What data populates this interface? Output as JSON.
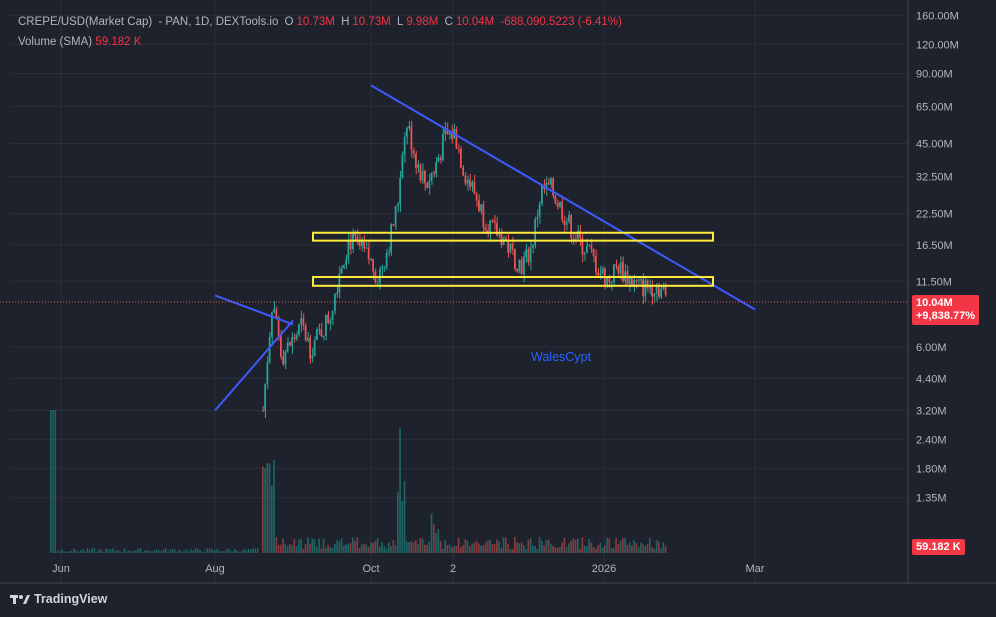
{
  "header": {
    "symbol": "CREPE/USD(Market Cap)",
    "source": " - PAN, 1D, DEXTools.io",
    "o_label": "O",
    "o_value": "10.73M",
    "h_label": "H",
    "h_value": "10.73M",
    "l_label": "L",
    "l_value": "9.98M",
    "c_label": "C",
    "c_value": "10.04M",
    "change": "-688,090.5223 (-6.41%)",
    "volume_label": "Volume (SMA)",
    "volume_value": "59.182 K"
  },
  "watermark": "WalesCypt",
  "brand": "TradingView",
  "price_tag": {
    "value": "10.04M",
    "change": "+9,838.77%"
  },
  "volume_tag": "59.182 K",
  "colors": {
    "up": "#26a69a",
    "down": "#ef5350",
    "trendline": "#3d5afe",
    "zone": "#ffeb3b",
    "background": "#1e222d"
  },
  "chart_data": {
    "type": "candlestick",
    "y_scale": "log",
    "y_ticks": [
      "160.00M",
      "120.00M",
      "90.00M",
      "65.00M",
      "45.00M",
      "32.50M",
      "22.50M",
      "16.50M",
      "11.50M",
      "6.00M",
      "4.40M",
      "3.20M",
      "2.40M",
      "1.80M",
      "1.35M"
    ],
    "x_ticks": [
      "Jun",
      "Aug",
      "Oct",
      "2",
      "2026",
      "Mar"
    ],
    "last_price": 10.04,
    "ohlc_path_millions": [
      3.2,
      9.8,
      5.5,
      6.3,
      7.4,
      5.9,
      7.0,
      8.2,
      13.0,
      17.5,
      16.0,
      14.5,
      12.0,
      16.0,
      24.0,
      55.0,
      38.0,
      30.0,
      36.0,
      48.0,
      50.0,
      34.0,
      28.0,
      22.0,
      19.0,
      18.0,
      15.0,
      13.5,
      16.0,
      28.0,
      29.0,
      24.0,
      20.0,
      17.0,
      15.5,
      13.0,
      11.5,
      13.5,
      12.0,
      11.0,
      10.8,
      11.2,
      10.04
    ],
    "annotations": [
      {
        "type": "trendline",
        "from": [
          "Oct",
          80.0
        ],
        "to": [
          "Mar",
          8.7
        ]
      },
      {
        "type": "trendline",
        "from": [
          "Aug",
          10.0
        ],
        "to": [
          "Sep",
          7.5
        ]
      },
      {
        "type": "trendline",
        "from": [
          "Aug",
          3.2
        ],
        "to": [
          "Sep",
          7.8
        ]
      },
      {
        "type": "zone",
        "low": 17.2,
        "high": 18.6,
        "from": "Sep",
        "to": "Feb"
      },
      {
        "type": "zone",
        "low": 11.0,
        "high": 12.0,
        "from": "Sep",
        "to": "Feb"
      }
    ]
  }
}
